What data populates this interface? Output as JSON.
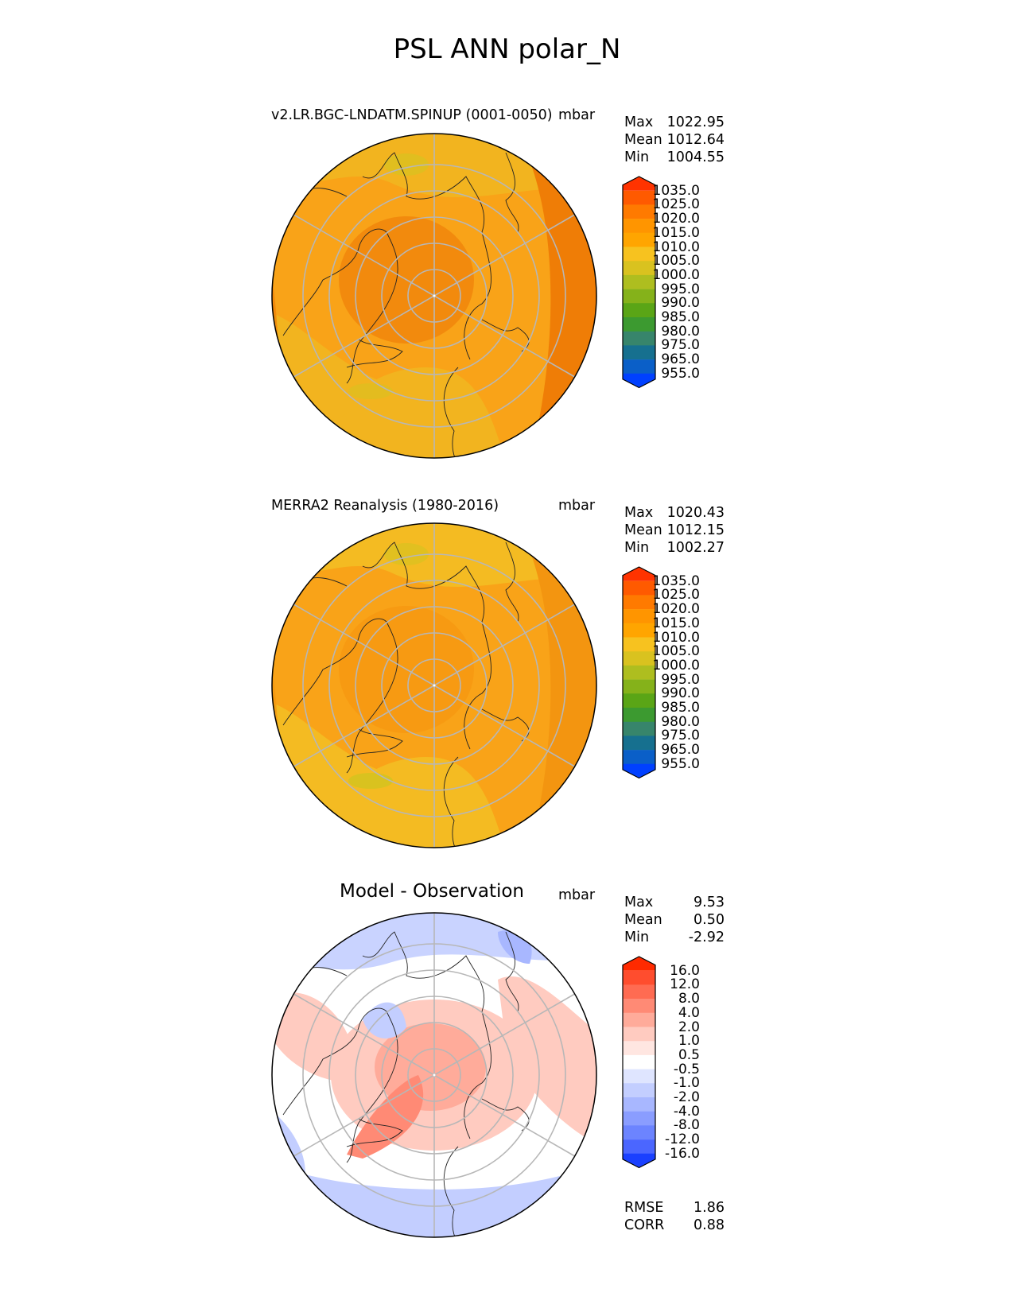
{
  "title": "PSL ANN polar_N",
  "panels": [
    {
      "title": "v2.LR.BGC-LNDATM.SPINUP (0001-0050)",
      "units": "mbar",
      "stats": [
        {
          "label": "Max",
          "value": "1022.95"
        },
        {
          "label": "Mean",
          "value": "1012.64"
        },
        {
          "label": "Min",
          "value": "1004.55"
        }
      ],
      "colorbar": {
        "ticks": [
          "1035.0",
          "1025.0",
          "1020.0",
          "1015.0",
          "1010.0",
          "1005.0",
          "1000.0",
          "995.0",
          "990.0",
          "985.0",
          "980.0",
          "975.0",
          "965.0",
          "955.0"
        ],
        "colors": [
          "#ff3300",
          "#ff5a00",
          "#ff7a00",
          "#ff9500",
          "#ffa500",
          "#f7c21f",
          "#d9c21f",
          "#aebe1f",
          "#85b21a",
          "#5aa516",
          "#3c9a30",
          "#37856b",
          "#16708f",
          "#0a5fc8",
          "#0040ff"
        ]
      },
      "field": {
        "base": "#f9a318",
        "ring": "#f2b41f",
        "center": "#f28a0d",
        "edge": "#ef7d06"
      }
    },
    {
      "title": "MERRA2 Reanalysis (1980-2016)",
      "units": "mbar",
      "stats": [
        {
          "label": "Max",
          "value": "1020.43"
        },
        {
          "label": "Mean",
          "value": "1012.15"
        },
        {
          "label": "Min",
          "value": "1002.27"
        }
      ],
      "colorbar": {
        "ticks": [
          "1035.0",
          "1025.0",
          "1020.0",
          "1015.0",
          "1010.0",
          "1005.0",
          "1000.0",
          "995.0",
          "990.0",
          "985.0",
          "980.0",
          "975.0",
          "965.0",
          "955.0"
        ],
        "colors": [
          "#ff3300",
          "#ff5a00",
          "#ff7a00",
          "#ff9500",
          "#ffa500",
          "#f7c21f",
          "#d9c21f",
          "#aebe1f",
          "#85b21a",
          "#5aa516",
          "#3c9a30",
          "#37856b",
          "#16708f",
          "#0a5fc8",
          "#0040ff"
        ]
      },
      "field": {
        "base": "#f9a318",
        "ring": "#f4bb22",
        "center": "#f79a12",
        "edge": "#f39510"
      }
    },
    {
      "title": "Model - Observation",
      "units": "mbar",
      "stats": [
        {
          "label": "Max",
          "value": "9.53"
        },
        {
          "label": "Mean",
          "value": "0.50"
        },
        {
          "label": "Min",
          "value": "-2.92"
        }
      ],
      "colorbar": {
        "ticks": [
          "16.0",
          "12.0",
          "8.0",
          "4.0",
          "2.0",
          "1.0",
          "0.5",
          "-0.5",
          "-1.0",
          "-2.0",
          "-4.0",
          "-8.0",
          "-12.0",
          "-16.0"
        ],
        "colors": [
          "#ff2a00",
          "#ff4d2e",
          "#ff6b52",
          "#ff8a75",
          "#ffab9a",
          "#ffcbc0",
          "#ffe6e1",
          "#ffffff",
          "#dfe5ff",
          "#c3ceff",
          "#a8b7ff",
          "#8a9dff",
          "#6c84ff",
          "#4b66ff",
          "#1a40ff"
        ]
      },
      "field": {
        "base": "#ffffff",
        "ring": "#ffd1c9",
        "center": "#ffb0a3",
        "edge": "#c8d2ff"
      },
      "extra_stats": [
        {
          "label": "RMSE",
          "value": "1.86"
        },
        {
          "label": "CORR",
          "value": "0.88"
        }
      ]
    }
  ]
}
